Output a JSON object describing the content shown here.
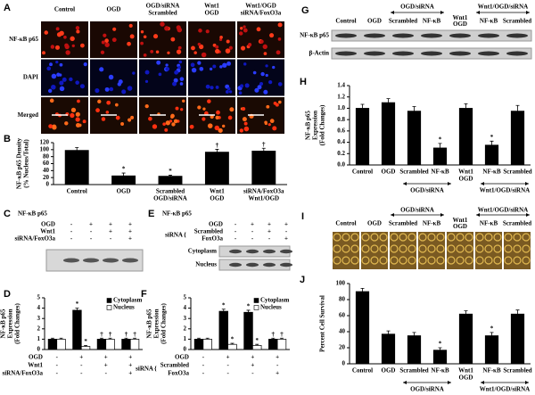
{
  "panels": {
    "A": {
      "letter": "A",
      "columns": [
        [
          "Control"
        ],
        [
          "OGD"
        ],
        [
          "OGD/siRNA",
          "Scrambled"
        ],
        [
          "Wnt1",
          "OGD"
        ],
        [
          "Wnt1/OGD",
          "siRNA/FoxO3a"
        ]
      ],
      "rows": [
        "NF-κB p65",
        "DAPI",
        "Merged"
      ]
    },
    "C": {
      "letter": "C",
      "title": "NF-κB p65",
      "conditions": [
        {
          "name": "OGD",
          "signs": [
            "-",
            "+",
            "+",
            "+"
          ]
        },
        {
          "name": "Wnt1",
          "signs": [
            "-",
            "-",
            "+",
            "+"
          ]
        },
        {
          "name": "siRNA/FoxO3a",
          "signs": [
            "-",
            "-",
            "-",
            "+"
          ]
        }
      ]
    },
    "E": {
      "letter": "E",
      "title": "NF-κB p65",
      "bracket": "siRNA",
      "conditions": [
        {
          "name": "OGD",
          "signs": [
            "-",
            "+",
            "+",
            "+"
          ]
        },
        {
          "name": "Scrambled",
          "signs": [
            "-",
            "-",
            "+",
            "-"
          ]
        },
        {
          "name": "FoxO3a",
          "signs": [
            "-",
            "-",
            "-",
            "+"
          ]
        }
      ],
      "bands": [
        "Cytoplasm",
        "Nucleus"
      ]
    },
    "G": {
      "letter": "G",
      "columns": [
        [
          "Control"
        ],
        [
          "OGD"
        ],
        [
          "Scrambled"
        ],
        [
          "NF-κB"
        ],
        [
          "Wnt1",
          "OGD"
        ],
        [
          "NF-κB"
        ],
        [
          "Scrambled"
        ]
      ],
      "groups": [
        "OGD/siRNA",
        "Wnt1/OGD/siRNA"
      ],
      "rows": [
        "NF-κB p65",
        "β-Actin"
      ]
    },
    "I": {
      "letter": "I",
      "columns": [
        [
          "Control"
        ],
        [
          "OGD"
        ],
        [
          "Scrambled"
        ],
        [
          "NF-κB"
        ],
        [
          "Wnt1",
          "OGD"
        ],
        [
          "NF-κB"
        ],
        [
          "Scrambled"
        ]
      ],
      "groups": [
        "OGD/siRNA",
        "Wnt1/OGD/siRNA"
      ]
    }
  },
  "chart_data": [
    {
      "type": "bar",
      "letter": "B",
      "ylabel": [
        "NF-κB p65 Density",
        "(% Nucleus/Total)"
      ],
      "categories": [
        [
          "Control"
        ],
        [
          "OGD"
        ],
        [
          "Scrambled",
          "OGD/siRNA"
        ],
        [
          "Wnt1",
          "OGD"
        ],
        [
          "siRNA/FoxO3a",
          "Wnt1/OGD"
        ]
      ],
      "series": [
        {
          "color": "#000000",
          "values": [
            98,
            25,
            24,
            93,
            96
          ],
          "errors": [
            8,
            8,
            3,
            8,
            8
          ],
          "markers": [
            null,
            "*",
            "*",
            "†",
            "†"
          ]
        }
      ],
      "ylim": [
        0,
        120
      ],
      "yticks": [
        0,
        20,
        40,
        60,
        80,
        100,
        120
      ]
    },
    {
      "type": "bar",
      "letter": "D",
      "ylabel": [
        "NF-κB p65",
        "Expression",
        "(Fold Changes)"
      ],
      "conditions": [
        {
          "name": "OGD",
          "signs": [
            "-",
            "+",
            "+",
            "+"
          ]
        },
        {
          "name": "Wnt1",
          "signs": [
            "-",
            "-",
            "+",
            "+"
          ]
        },
        {
          "name": "siRNA/FoxO3a",
          "signs": [
            "-",
            "-",
            "-",
            "+"
          ]
        }
      ],
      "series": [
        {
          "name": "Cytoplasm",
          "color": "#000000",
          "values": [
            1,
            3.8,
            1,
            1
          ],
          "errors": [
            0.1,
            0.2,
            0.1,
            0.1
          ],
          "markers": [
            null,
            "*",
            "†",
            "†"
          ]
        },
        {
          "name": "Nucleus",
          "color": "#ffffff",
          "values": [
            1,
            0.3,
            1,
            1
          ],
          "errors": [
            0.1,
            0.1,
            0.1,
            0.1
          ],
          "markers": [
            null,
            "*",
            "†",
            "†"
          ]
        }
      ],
      "ylim": [
        0,
        5
      ],
      "yticks": [
        0,
        1,
        2,
        3,
        4,
        5
      ],
      "legend": "top-right"
    },
    {
      "type": "bar",
      "letter": "F",
      "ylabel": [
        "NF-κB p65",
        "Expression",
        "(Fold Changes)"
      ],
      "bracket": "siRNA",
      "conditions": [
        {
          "name": "OGD",
          "signs": [
            "-",
            "+",
            "+",
            "+"
          ]
        },
        {
          "name": "Scrambled",
          "signs": [
            "-",
            "-",
            "+",
            "-"
          ]
        },
        {
          "name": "FoxO3a",
          "signs": [
            "-",
            "-",
            "-",
            "+"
          ]
        }
      ],
      "series": [
        {
          "name": "Cytoplasm",
          "color": "#000000",
          "values": [
            1,
            3.7,
            3.6,
            1
          ],
          "errors": [
            0.1,
            0.2,
            0.2,
            0.1
          ],
          "markers": [
            null,
            "*",
            "*",
            "†"
          ]
        },
        {
          "name": "Nucleus",
          "color": "#ffffff",
          "values": [
            1,
            0.5,
            0.4,
            1
          ],
          "errors": [
            0.1,
            0.1,
            0.1,
            0.1
          ],
          "markers": [
            null,
            "*",
            "*",
            "†"
          ]
        }
      ],
      "ylim": [
        0,
        5
      ],
      "yticks": [
        0,
        1,
        2,
        3,
        4,
        5
      ],
      "legend": "top-right"
    },
    {
      "type": "bar",
      "letter": "H",
      "ylabel": [
        "NF-κB p65",
        "Expression",
        "(Fold Changes)"
      ],
      "categories": [
        [
          "Control"
        ],
        [
          "OGD"
        ],
        [
          "Scrambled"
        ],
        [
          "NF-κB"
        ],
        [
          "Wnt1",
          "OGD"
        ],
        [
          "NF-κB"
        ],
        [
          "Scrambled"
        ]
      ],
      "groups": [
        "OGD/siRNA",
        "Wnt1/OGD/siRNA"
      ],
      "series": [
        {
          "color": "#000000",
          "values": [
            1.0,
            1.1,
            0.95,
            0.3,
            1.0,
            0.35,
            0.95
          ],
          "errors": [
            0.07,
            0.07,
            0.08,
            0.08,
            0.08,
            0.07,
            0.1
          ],
          "markers": [
            null,
            null,
            null,
            "*",
            null,
            "*",
            null
          ]
        }
      ],
      "ylim": [
        0,
        1.4
      ],
      "yticks": [
        {
          "value": 0,
          "label": "0.0"
        },
        0.2,
        0.4,
        0.6,
        0.8,
        {
          "value": 1,
          "label": "1.0"
        },
        1.2,
        1.4
      ]
    },
    {
      "type": "bar",
      "letter": "J",
      "ylabel": [
        "Percent Cell Survival"
      ],
      "categories": [
        [
          "Control"
        ],
        [
          "OGD"
        ],
        [
          "Scrambled"
        ],
        [
          "NF-κB"
        ],
        [
          "Wnt1",
          "OGD"
        ],
        [
          "NF-κB"
        ],
        [
          "Scrambled"
        ]
      ],
      "groups": [
        "OGD/siRNA",
        "Wnt1/OGD/siRNA"
      ],
      "series": [
        {
          "color": "#000000",
          "values": [
            90,
            37,
            35,
            17,
            62,
            35,
            62
          ],
          "errors": [
            4,
            4,
            4,
            3,
            4,
            4,
            5
          ],
          "markers": [
            null,
            null,
            null,
            "*",
            null,
            "*",
            null
          ]
        }
      ],
      "ylim": [
        0,
        100
      ],
      "yticks": [
        0,
        20,
        40,
        60,
        80,
        100
      ]
    }
  ]
}
